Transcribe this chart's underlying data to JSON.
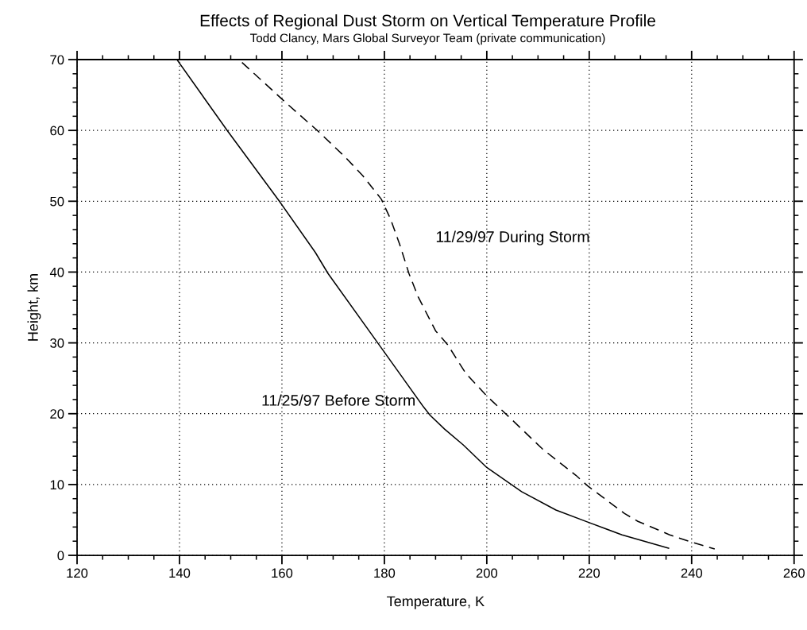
{
  "chart_data": {
    "type": "line",
    "title": "Effects of Regional Dust Storm on Vertical Temperature Profile",
    "subtitle": "Todd Clancy, Mars Global Surveyor Team (private communication)",
    "xlabel": "Temperature, K",
    "ylabel": "Height, km",
    "series": [
      {
        "name": "11/25/97 Before Storm",
        "color": "#000000",
        "line_style": "solid",
        "x": [
          139.5,
          149.4,
          159.5,
          166.5,
          169.0,
          178.9,
          187.6,
          188.9,
          191.8,
          195.4,
          200.0,
          204.4,
          206.8,
          213.5,
          219.7,
          226.4,
          235.5
        ],
        "values": [
          70,
          59.9,
          50,
          42.8,
          39.8,
          29.8,
          21.0,
          19.8,
          17.8,
          15.6,
          12.4,
          10.2,
          9.0,
          6.4,
          4.7,
          2.9,
          1.0
        ]
      },
      {
        "name": "11/29/97 During Storm",
        "color": "#000000",
        "line_style": "dashed",
        "x": [
          152.2,
          160.8,
          167.2,
          172.4,
          175.8,
          179.4,
          181.2,
          183.0,
          184.8,
          186.6,
          190.0,
          192.3,
          195.9,
          200.0,
          204.4,
          210.9,
          217.4,
          219.7,
          226.9,
          229.5,
          235.7,
          239.8,
          244.5
        ],
        "values": [
          69.6,
          63.9,
          59.8,
          56.2,
          53.6,
          50.3,
          47.5,
          43.9,
          39.8,
          36.5,
          31.7,
          29.8,
          25.7,
          22.5,
          19.5,
          15.0,
          11.3,
          9.8,
          5.9,
          4.8,
          2.9,
          1.9,
          0.9
        ]
      }
    ],
    "xlim": [
      120,
      260
    ],
    "ylim": [
      0,
      70
    ],
    "xticks": [
      120,
      140,
      160,
      180,
      200,
      220,
      240,
      260,
      {
        "value": 125,
        "label": null
      },
      {
        "value": 130,
        "label": null
      },
      {
        "value": 135,
        "label": null
      },
      {
        "value": 145,
        "label": null
      },
      {
        "value": 150,
        "label": null
      },
      {
        "value": 155,
        "label": null
      },
      {
        "value": 165,
        "label": null
      },
      {
        "value": 170,
        "label": null
      },
      {
        "value": 175,
        "label": null
      },
      {
        "value": 185,
        "label": null
      },
      {
        "value": 190,
        "label": null
      },
      {
        "value": 195,
        "label": null
      },
      {
        "value": 205,
        "label": null
      },
      {
        "value": 210,
        "label": null
      },
      {
        "value": 215,
        "label": null
      },
      {
        "value": 225,
        "label": null
      },
      {
        "value": 230,
        "label": null
      },
      {
        "value": 235,
        "label": null
      },
      {
        "value": 245,
        "label": null
      },
      {
        "value": 250,
        "label": null
      },
      {
        "value": 255,
        "label": null
      }
    ],
    "yticks": [
      0,
      10,
      20,
      30,
      40,
      50,
      60,
      70,
      {
        "value": 2,
        "label": null
      },
      {
        "value": 4,
        "label": null
      },
      {
        "value": 6,
        "label": null
      },
      {
        "value": 8,
        "label": null
      },
      {
        "value": 12,
        "label": null
      },
      {
        "value": 14,
        "label": null
      },
      {
        "value": 16,
        "label": null
      },
      {
        "value": 18,
        "label": null
      },
      {
        "value": 22,
        "label": null
      },
      {
        "value": 24,
        "label": null
      },
      {
        "value": 26,
        "label": null
      },
      {
        "value": 28,
        "label": null
      },
      {
        "value": 32,
        "label": null
      },
      {
        "value": 34,
        "label": null
      },
      {
        "value": 36,
        "label": null
      },
      {
        "value": 38,
        "label": null
      },
      {
        "value": 42,
        "label": null
      },
      {
        "value": 44,
        "label": null
      },
      {
        "value": 46,
        "label": null
      },
      {
        "value": 48,
        "label": null
      },
      {
        "value": 52,
        "label": null
      },
      {
        "value": 54,
        "label": null
      },
      {
        "value": 56,
        "label": null
      },
      {
        "value": 58,
        "label": null
      },
      {
        "value": 62,
        "label": null
      },
      {
        "value": 64,
        "label": null
      },
      {
        "value": 66,
        "label": null
      },
      {
        "value": 68,
        "label": null
      }
    ],
    "grid": true,
    "legend": false,
    "marker": "none"
  }
}
